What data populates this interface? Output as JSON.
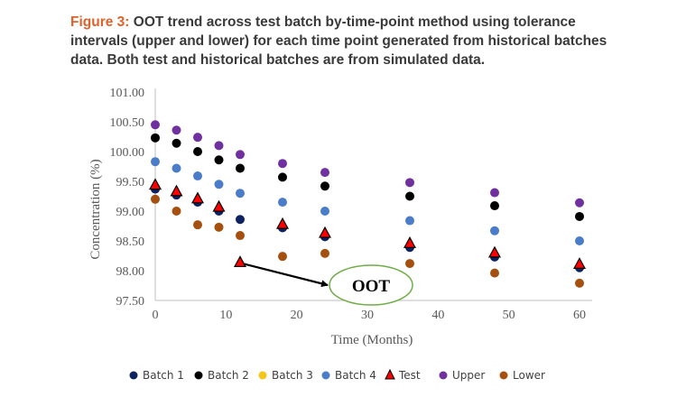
{
  "caption": {
    "label": "Figure 3:",
    "text": " OOT trend across test batch by-time-point method using tolerance intervals (upper and lower) for each time point generated from historical batches data. Both test and historical batches are from simulated data."
  },
  "chart_data": {
    "type": "scatter",
    "xlabel": "Time (Months)",
    "ylabel": "Concentration (%)",
    "xlim": [
      0,
      60
    ],
    "ylim": [
      97.5,
      101.0
    ],
    "xticks": [
      "0",
      "10",
      "20",
      "30",
      "40",
      "50",
      "60"
    ],
    "yticks": [
      "97.50",
      "98.00",
      "98.50",
      "99.00",
      "99.50",
      "100.00",
      "100.50",
      "101.00"
    ],
    "grid": false,
    "legend_position": "bottom",
    "x": [
      0,
      3,
      6,
      9,
      12,
      18,
      24,
      36,
      48,
      60
    ],
    "series": [
      {
        "name": "Batch 1",
        "marker": "circle",
        "color": "#0d2260",
        "values": [
          99.37,
          99.27,
          99.15,
          99.0,
          98.86,
          98.72,
          98.57,
          98.39,
          98.23,
          98.05
        ]
      },
      {
        "name": "Batch 2",
        "marker": "circle",
        "color": "#000000",
        "values": [
          100.23,
          100.14,
          100.0,
          99.86,
          99.72,
          99.57,
          99.42,
          99.25,
          99.09,
          98.91
        ]
      },
      {
        "name": "Batch 3",
        "marker": "circle",
        "color": "#f5c518",
        "values": []
      },
      {
        "name": "Batch 4",
        "marker": "circle",
        "color": "#4a7cc9",
        "values": [
          99.83,
          99.72,
          99.59,
          99.45,
          99.3,
          99.15,
          99.0,
          98.84,
          98.67,
          98.5
        ]
      },
      {
        "name": "Test",
        "marker": "triangle",
        "color": "#ff0000",
        "values": [
          99.43,
          99.32,
          99.2,
          99.06,
          98.13,
          98.77,
          98.62,
          98.45,
          98.29,
          98.1
        ]
      },
      {
        "name": "Upper",
        "marker": "circle",
        "color": "#7030a0",
        "values": [
          100.45,
          100.36,
          100.24,
          100.1,
          99.95,
          99.8,
          99.65,
          99.48,
          99.31,
          99.14
        ]
      },
      {
        "name": "Lower",
        "marker": "circle",
        "color": "#a5500f",
        "values": [
          99.2,
          99.0,
          98.77,
          98.73,
          98.59,
          98.24,
          98.29,
          98.12,
          97.96,
          97.79
        ]
      }
    ],
    "annotations": [
      {
        "text": "OOT",
        "shape": "ellipse",
        "color": "#70ad47",
        "arrow_from": {
          "x": 12,
          "y": 98.13
        }
      }
    ]
  }
}
